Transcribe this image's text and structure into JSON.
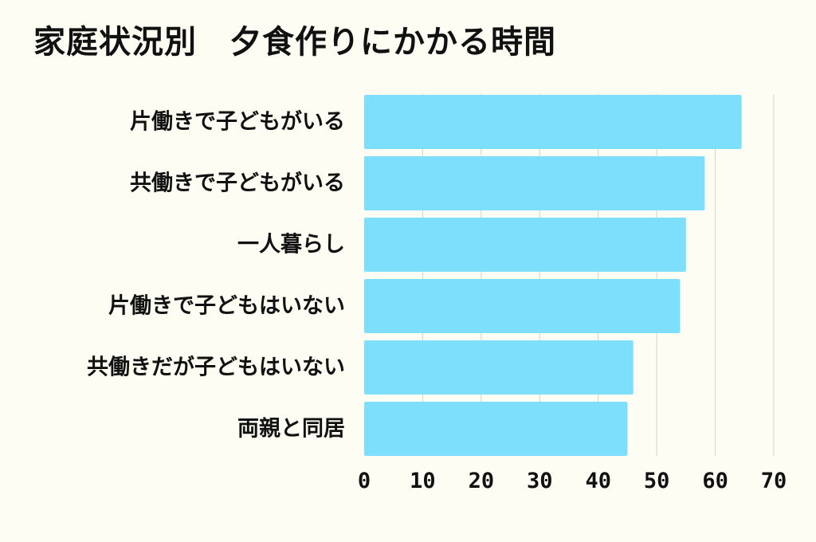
{
  "chart_data": {
    "type": "bar",
    "orientation": "horizontal",
    "title": "家庭状況別　夕食作りにかかる時間",
    "categories": [
      "片働きで子どもがいる",
      "共働きで子どもがいる",
      "一人暮らし",
      "片働きで子どもはいない",
      "共働きだが子どもはいない",
      "両親と同居"
    ],
    "values": [
      64.5,
      58.2,
      55,
      54,
      46,
      45
    ],
    "xlim": [
      0,
      70
    ],
    "xticks": [
      0,
      10,
      20,
      30,
      40,
      50,
      60,
      70
    ],
    "grid": true,
    "bar_color": "#7ddffc",
    "grid_color": "#d2d2cc",
    "background_color": "#fdfdf4"
  }
}
